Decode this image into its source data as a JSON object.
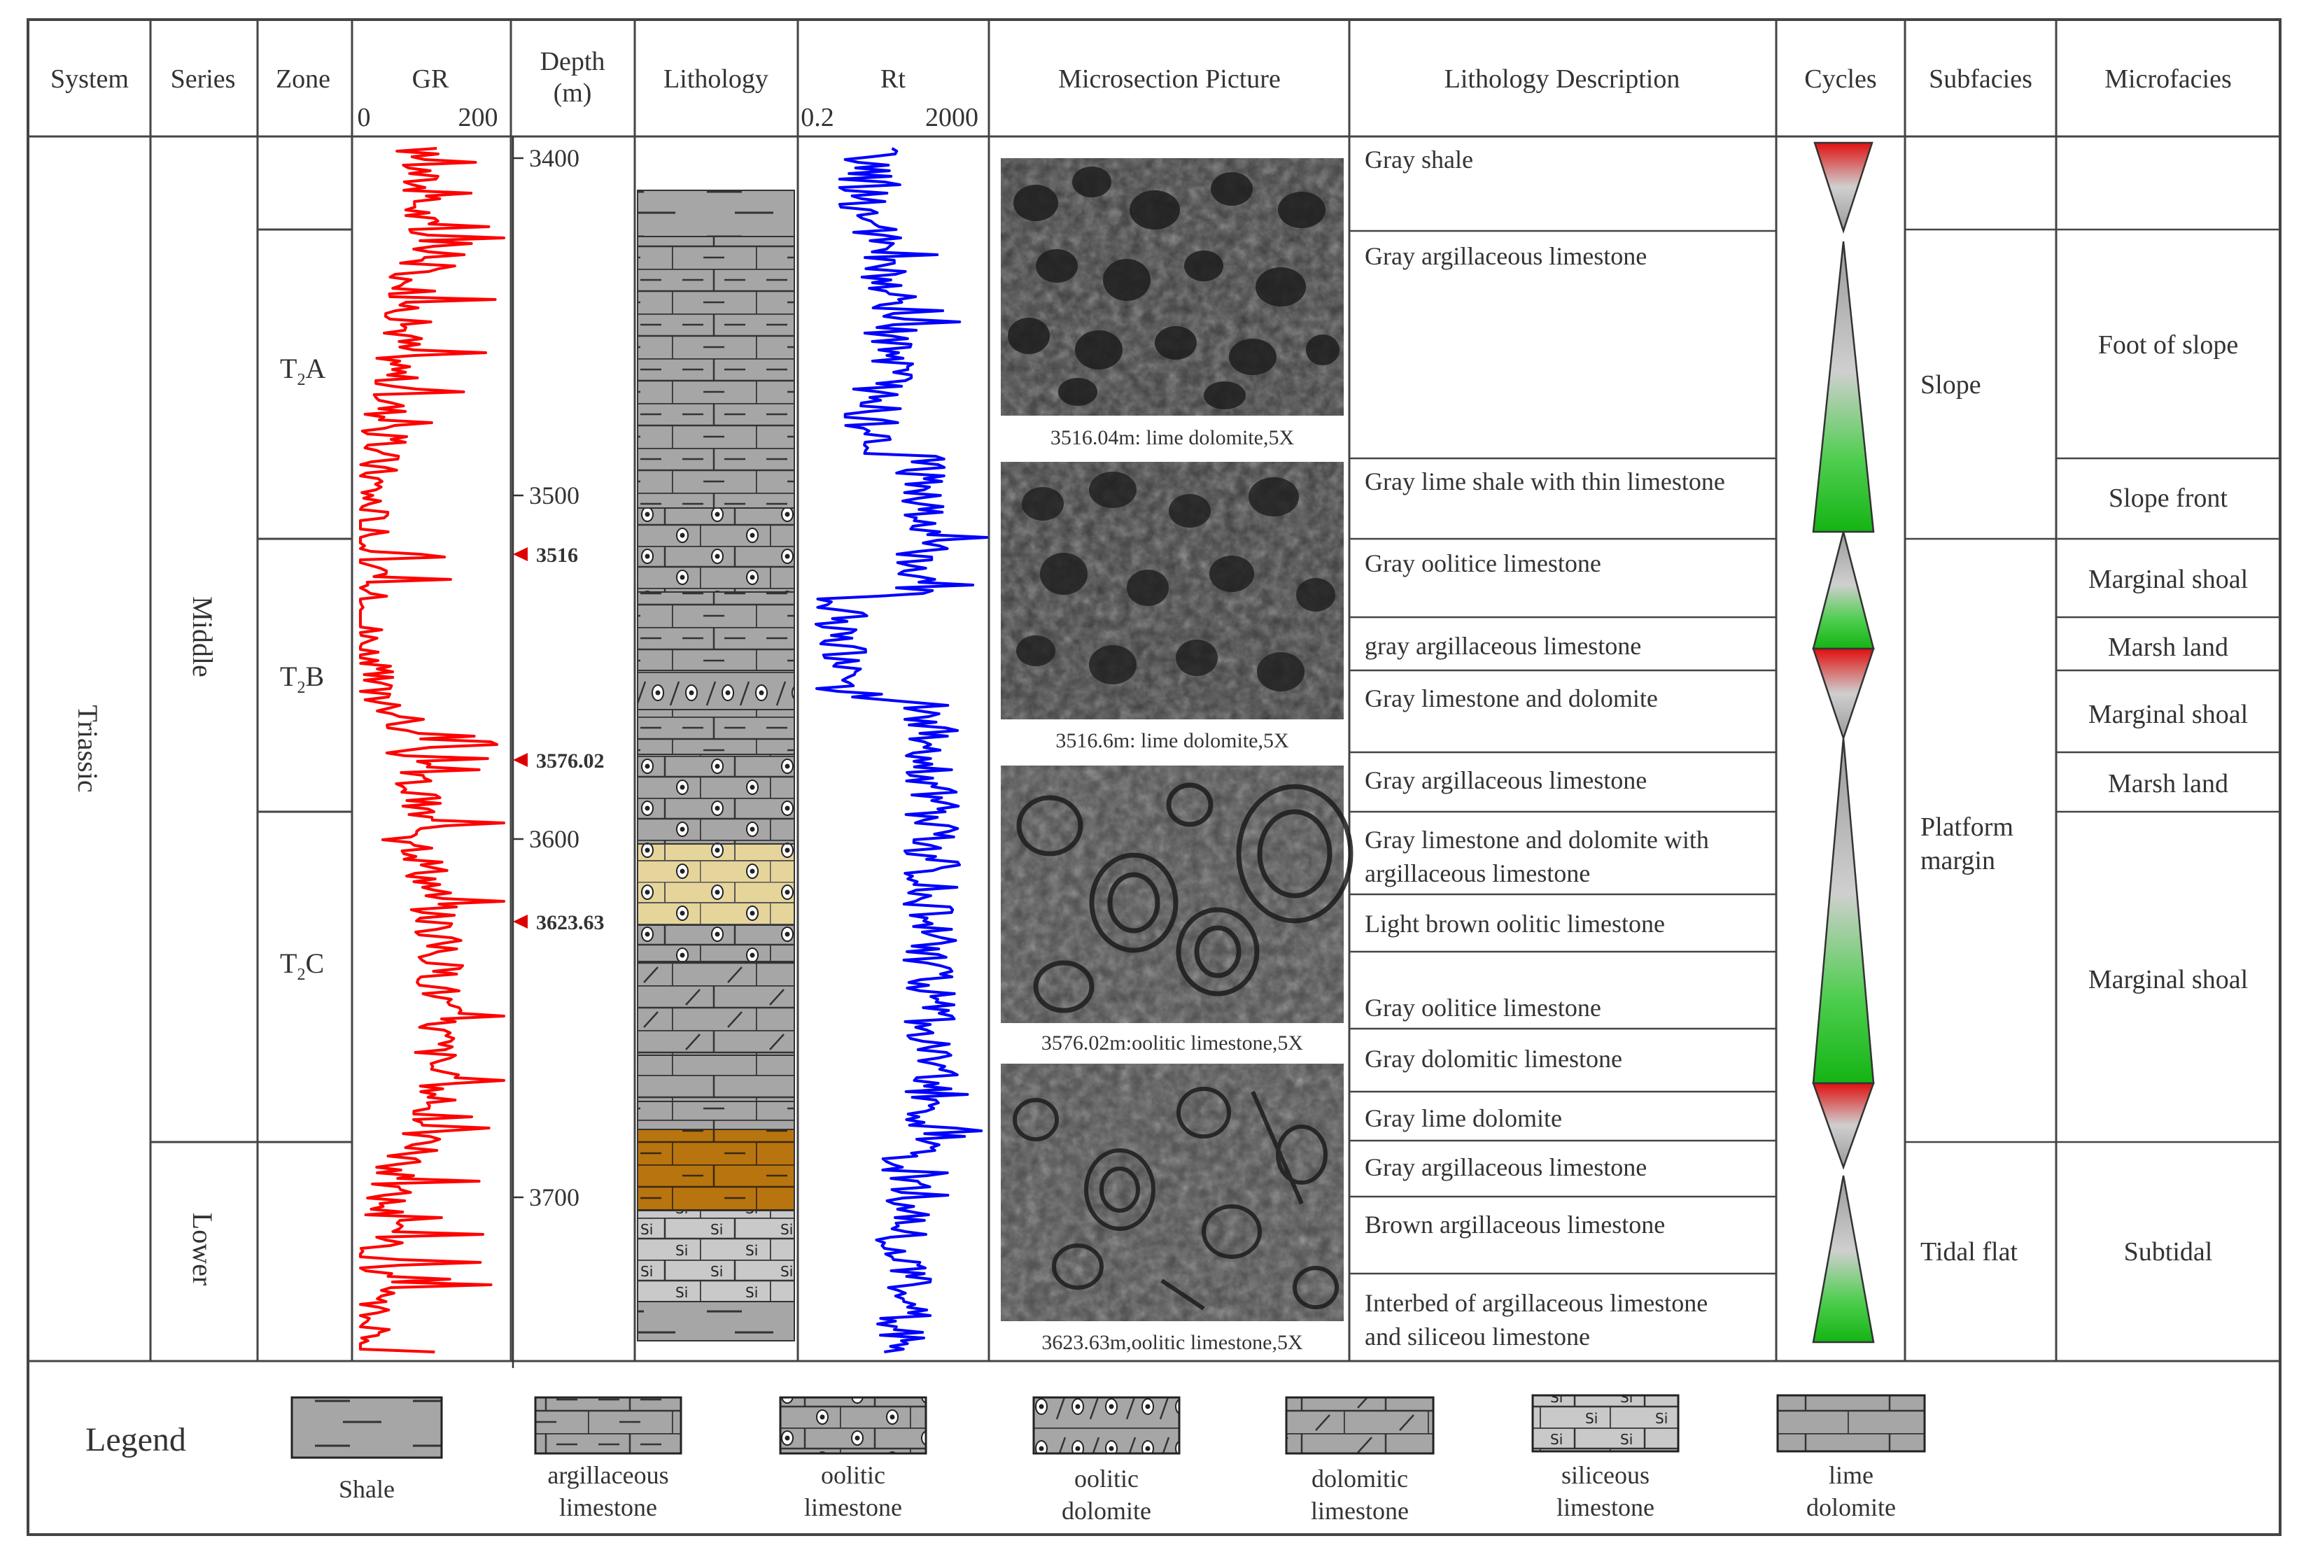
{
  "headers": {
    "system": "System",
    "series": "Series",
    "zone": "Zone",
    "gr": "GR",
    "gr_min": "0",
    "gr_max": "200",
    "depth": "Depth",
    "depth_unit": "(m)",
    "lithology": "Lithology",
    "rt": "Rt",
    "rt_min": "0.2",
    "rt_max": "2000",
    "microsection": "Microsection Picture",
    "lithology_description": "Lithology Description",
    "cycles": "Cycles",
    "subfacies": "Subfacies",
    "microfacies": "Microfacies"
  },
  "system": "Triassic",
  "series": [
    "Middle",
    "Lower"
  ],
  "zones": [
    {
      "base": "T",
      "sub": "2",
      "suffix": "A"
    },
    {
      "base": "T",
      "sub": "2",
      "suffix": "B"
    },
    {
      "base": "T",
      "sub": "2",
      "suffix": "C"
    }
  ],
  "depth_ticks": [
    "3400",
    "3500",
    "3600",
    "3700"
  ],
  "sample_markers": [
    "3516",
    "3576.02",
    "3623.63"
  ],
  "micro_captions": [
    "3516.04m: lime dolomite,5X",
    "3516.6m: lime dolomite,5X",
    "3576.02m:oolitic limestone,5X",
    "3623.63m,oolitic limestone,5X"
  ],
  "descriptions": [
    [
      "Gray shale"
    ],
    [
      "Gray argillaceous limestone"
    ],
    [
      "Gray lime shale with thin limestone"
    ],
    [
      "Gray oolitice limestone"
    ],
    [
      "gray argillaceous limestone"
    ],
    [
      "Gray limestone and dolomite"
    ],
    [
      "Gray argillaceous limestone"
    ],
    [
      "Gray limestone and dolomite with",
      "argillaceous limestone"
    ],
    [
      "Light brown oolitic limestone"
    ],
    [
      "Gray oolitice limestone"
    ],
    [
      "Gray dolomitic limestone"
    ],
    [
      "Gray lime dolomite"
    ],
    [
      "Gray argillaceous limestone"
    ],
    [
      "Brown argillaceous limestone"
    ],
    [
      "Interbed of argillaceous limestone",
      "and siliceou limestone"
    ]
  ],
  "subfacies": [
    [
      "Slope"
    ],
    [
      "Platform",
      "margin"
    ],
    [
      "Tidal flat"
    ]
  ],
  "microfacies": [
    "Foot of slope",
    "Slope front",
    "Marginal shoal",
    "Marsh land",
    "Marginal shoal",
    "Marsh land",
    "Marginal shoal",
    "Subtidal"
  ],
  "legend": {
    "title": "Legend",
    "items": [
      {
        "pattern": "shale",
        "lines": [
          "Shale"
        ]
      },
      {
        "pattern": "argillaceous-limestone",
        "lines": [
          "argillaceous",
          "limestone"
        ]
      },
      {
        "pattern": "oolitic-limestone",
        "lines": [
          "oolitic",
          "limestone"
        ]
      },
      {
        "pattern": "oolitic-dolomite",
        "lines": [
          "oolitic",
          "dolomite"
        ]
      },
      {
        "pattern": "dolomitic-limestone",
        "lines": [
          "dolomitic",
          "limestone"
        ]
      },
      {
        "pattern": "siliceous-limestone",
        "lines": [
          "siliceous",
          "limestone"
        ]
      },
      {
        "pattern": "lime-dolomite",
        "lines": [
          "lime",
          "dolomite"
        ]
      }
    ]
  },
  "colors": {
    "gr_curve": "#ff0000",
    "rt_curve": "#0000ff",
    "lith_gray": "#a6a6a6",
    "lith_yellow": "#e6d59b",
    "lith_brown": "#b8740f",
    "cycle_red": "#e01010",
    "cycle_green": "#14b414",
    "marker_red": "#dd0000"
  }
}
